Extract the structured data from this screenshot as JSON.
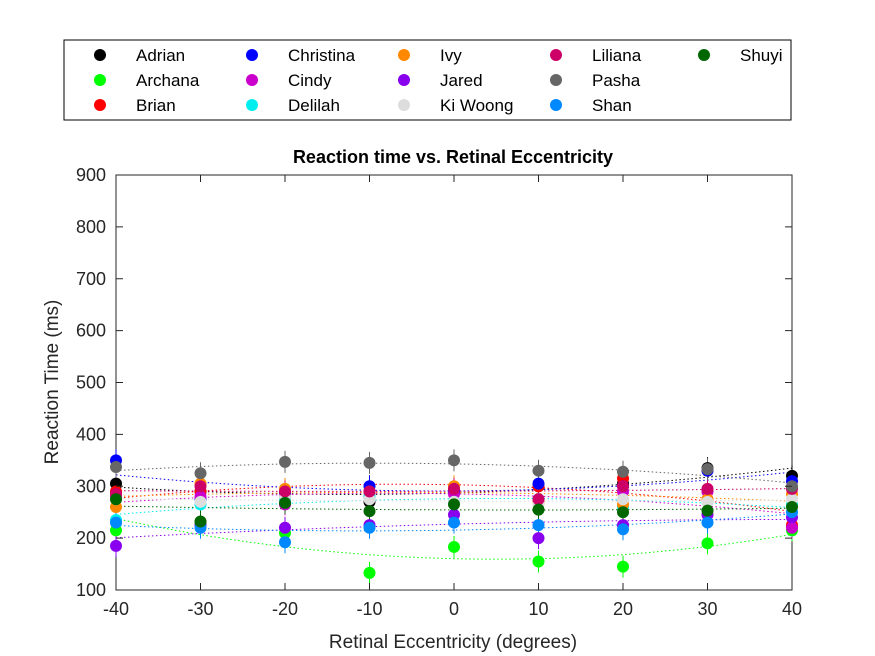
{
  "chart_data": {
    "type": "scatter",
    "title": "Reaction time vs. Retinal Eccentricity",
    "xlabel": "Retinal Eccentricity (degrees)",
    "ylabel": "Reaction Time (ms)",
    "xlim": [
      -40,
      40
    ],
    "ylim": [
      100,
      900
    ],
    "xticks": [
      -40,
      -30,
      -20,
      -10,
      0,
      10,
      20,
      30,
      40
    ],
    "yticks": [
      100,
      200,
      300,
      400,
      500,
      600,
      700,
      800,
      900
    ],
    "x": [
      -40,
      -30,
      -20,
      -10,
      0,
      10,
      20,
      30,
      40
    ],
    "grid": false,
    "legend_position": "top",
    "fit_lines": "dotted trend line per series",
    "error_bars": true,
    "series": [
      {
        "name": "Adrian",
        "color": "#000000",
        "values": [
          305,
          290,
          280,
          270,
          290,
          300,
          305,
          335,
          320
        ]
      },
      {
        "name": "Archana",
        "color": "#00ff00",
        "values": [
          215,
          230,
          210,
          133,
          183,
          155,
          145,
          190,
          215
        ]
      },
      {
        "name": "Brian",
        "color": "#ff0000",
        "values": [
          290,
          290,
          285,
          290,
          295,
          300,
          315,
          290,
          225
        ]
      },
      {
        "name": "Christina",
        "color": "#0000ff",
        "values": [
          350,
          275,
          285,
          300,
          290,
          305,
          300,
          330,
          310
        ]
      },
      {
        "name": "Cindy",
        "color": "#cc00cc",
        "values": [
          280,
          280,
          265,
          280,
          285,
          275,
          290,
          290,
          220
        ]
      },
      {
        "name": "Delilah",
        "color": "#00eeee",
        "values": [
          235,
          265,
          275,
          280,
          270,
          275,
          260,
          270,
          265
        ]
      },
      {
        "name": "Ivy",
        "color": "#ff8800",
        "values": [
          260,
          305,
          295,
          290,
          300,
          270,
          265,
          275,
          285
        ]
      },
      {
        "name": "Jared",
        "color": "#8800ee",
        "values": [
          185,
          225,
          220,
          225,
          245,
          200,
          225,
          245,
          240
        ]
      },
      {
        "name": "Ki Woong",
        "color": "#dddddd",
        "values": [
          275,
          270,
          280,
          275,
          270,
          265,
          275,
          270,
          275
        ]
      },
      {
        "name": "Liliana",
        "color": "#cc0066",
        "values": [
          285,
          300,
          290,
          290,
          295,
          275,
          300,
          295,
          295
        ]
      },
      {
        "name": "Pasha",
        "color": "#666666",
        "values": [
          337,
          325,
          347,
          345,
          350,
          330,
          328,
          333,
          300
        ]
      },
      {
        "name": "Shan",
        "color": "#0088ff",
        "values": [
          230,
          220,
          192,
          220,
          230,
          225,
          217,
          230,
          250
        ]
      },
      {
        "name": "Shuyi",
        "color": "#006600",
        "values": [
          275,
          232,
          268,
          252,
          265,
          255,
          250,
          253,
          260
        ]
      }
    ]
  }
}
